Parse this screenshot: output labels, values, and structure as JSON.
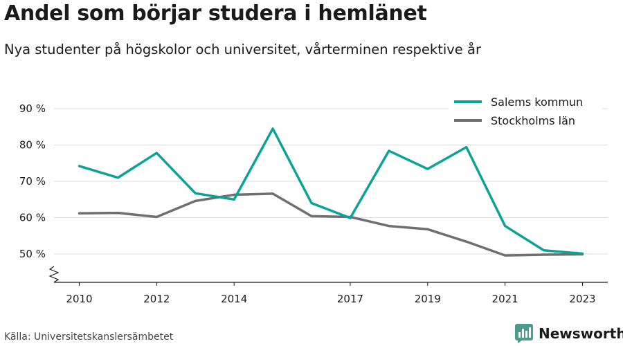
{
  "title": "Andel som börjar studera i hemlänet",
  "subtitle": "Nya studenter på högskolor och universitet, vårterminen respektive år",
  "source": "Källa: Universitetskanslersämbetet",
  "brand": {
    "name": "Newsworthy",
    "icon": "newsworthy-logo-icon",
    "color": "#4e9a8c"
  },
  "chart_data": {
    "type": "line",
    "title": "Andel som börjar studera i hemlänet",
    "xlabel": "",
    "ylabel": "",
    "x": [
      2010,
      2011,
      2012,
      2013,
      2014,
      2015,
      2016,
      2017,
      2018,
      2019,
      2020,
      2021,
      2022,
      2023
    ],
    "x_ticks": [
      2010,
      2012,
      2014,
      2017,
      2019,
      2021,
      2023
    ],
    "y_ticks": [
      50,
      60,
      70,
      80,
      90
    ],
    "y_tick_suffix": " %",
    "ylim": [
      42,
      93
    ],
    "axis_break": true,
    "grid": true,
    "legend_position": "top-right",
    "series": [
      {
        "name": "Salems kommun",
        "color": "#0ba396",
        "values": [
          74.2,
          71.0,
          77.8,
          66.7,
          65.0,
          84.5,
          64.0,
          59.9,
          78.4,
          73.4,
          79.4,
          57.7,
          51.0,
          50.1
        ]
      },
      {
        "name": "Stockholms län",
        "color": "#6e6e73",
        "values": [
          61.2,
          61.3,
          60.2,
          64.6,
          66.3,
          66.6,
          60.4,
          60.2,
          57.7,
          56.8,
          53.4,
          49.6,
          49.8,
          49.9
        ]
      }
    ]
  }
}
